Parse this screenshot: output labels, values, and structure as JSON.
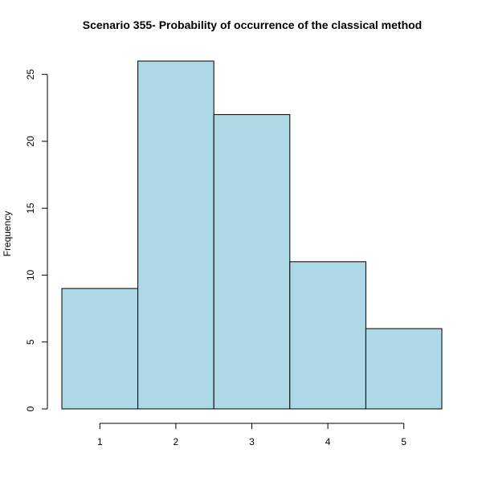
{
  "chart_data": {
    "type": "bar",
    "title": "Scenario 355- Probability of occurrence of the classical method",
    "xlabel": "",
    "ylabel": "Frequency",
    "categories": [
      "1",
      "2",
      "3",
      "4",
      "5"
    ],
    "values": [
      9,
      26,
      22,
      11,
      6
    ],
    "xlim": [
      0.5,
      5.5
    ],
    "ylim": [
      0,
      26
    ],
    "x_ticks": [
      1,
      2,
      3,
      4,
      5
    ],
    "y_ticks": [
      0,
      5,
      10,
      15,
      20,
      25
    ],
    "grid": false,
    "legend": "none",
    "colors": {
      "bar_fill": "#add8e6",
      "bar_stroke": "#000000",
      "axis": "#000000"
    }
  }
}
